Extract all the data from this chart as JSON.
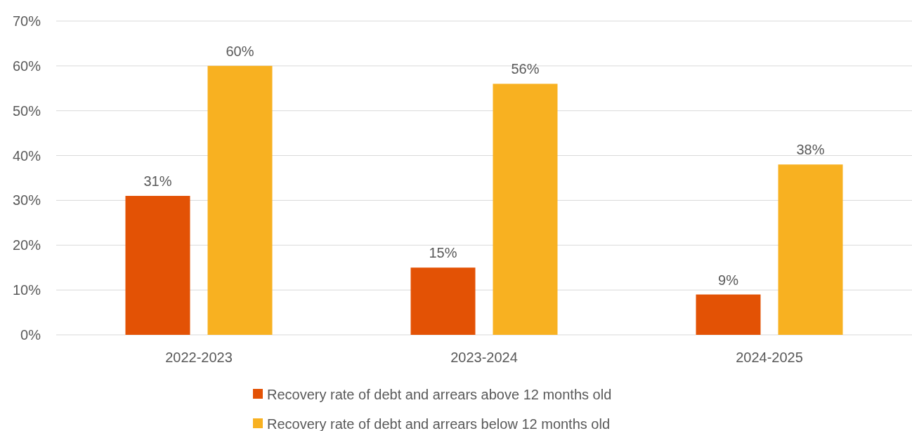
{
  "chart_data": {
    "type": "bar",
    "categories": [
      "2022-2023",
      "2023-2024",
      "2024-2025"
    ],
    "series": [
      {
        "name": "Recovery rate of debt and arrears above 12 months old",
        "color": "#e35205",
        "values": [
          31,
          15,
          9
        ],
        "value_labels": [
          "31%",
          "15%",
          "9%"
        ]
      },
      {
        "name": "Recovery rate of debt and arrears below 12 months old",
        "color": "#f8b121",
        "values": [
          60,
          56,
          38
        ],
        "value_labels": [
          "60%",
          "56%",
          "38%"
        ]
      }
    ],
    "ylim": [
      0,
      70
    ],
    "yticks": [
      {
        "value": 0,
        "label": "0%"
      },
      {
        "value": 10,
        "label": "10%"
      },
      {
        "value": 20,
        "label": "20%"
      },
      {
        "value": 30,
        "label": "30%"
      },
      {
        "value": 40,
        "label": "40%"
      },
      {
        "value": 50,
        "label": "50%"
      },
      {
        "value": 60,
        "label": "60%"
      },
      {
        "value": 70,
        "label": "70%"
      }
    ],
    "grid": "y",
    "legend": "bottom"
  }
}
